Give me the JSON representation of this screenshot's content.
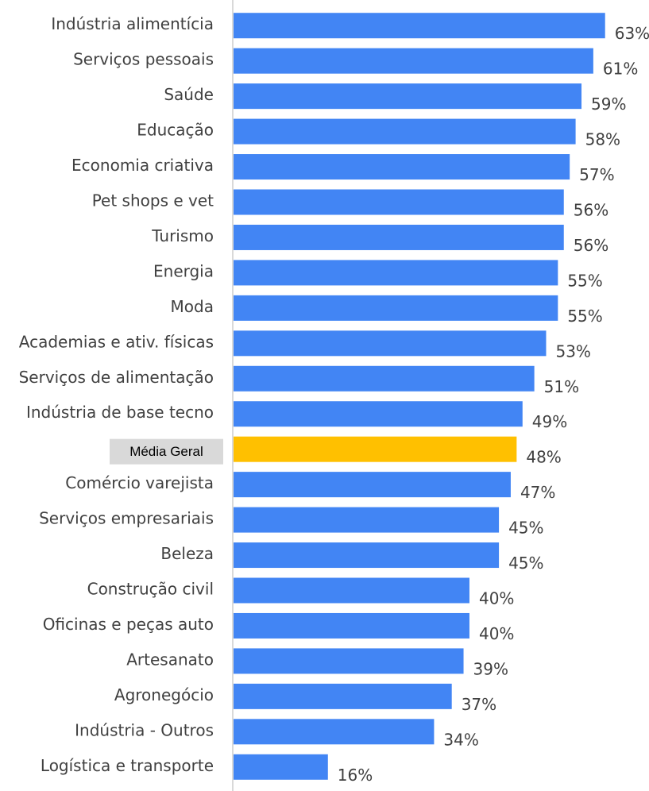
{
  "chart_data": {
    "type": "bar",
    "orientation": "horizontal",
    "categories": [
      "Indústria alimentícia",
      "Serviços pessoais",
      "Saúde",
      "Educação",
      "Economia criativa",
      "Pet shops e vet",
      "Turismo",
      "Energia",
      "Moda",
      "Academias e ativ. físicas",
      "Serviços de alimentação",
      "Indústria de base tecno",
      "Média Geral",
      "Comércio varejista",
      "Serviços empresariais",
      "Beleza",
      "Construção civil",
      "Oficinas e peças auto",
      "Artesanato",
      "Agronegócio",
      "Indústria - Outros",
      "Logística e transporte"
    ],
    "values": [
      63,
      61,
      59,
      58,
      57,
      56,
      56,
      55,
      55,
      53,
      51,
      49,
      48,
      47,
      45,
      45,
      40,
      40,
      39,
      37,
      34,
      16
    ],
    "value_labels": [
      "63%",
      "61%",
      "59%",
      "58%",
      "57%",
      "56%",
      "56%",
      "55%",
      "55%",
      "53%",
      "51%",
      "49%",
      "48%",
      "47%",
      "45%",
      "45%",
      "40%",
      "40%",
      "39%",
      "37%",
      "34%",
      "16%"
    ],
    "highlight_category": "Média Geral",
    "xlim": [
      0,
      66
    ],
    "grid": false,
    "legend": "none",
    "colors": {
      "bar": "#4285F4",
      "highlight_bar": "#FFC000",
      "highlight_label_bg": "#D9D9D9",
      "axis": "#D9D9D9",
      "text": "#404040"
    }
  }
}
